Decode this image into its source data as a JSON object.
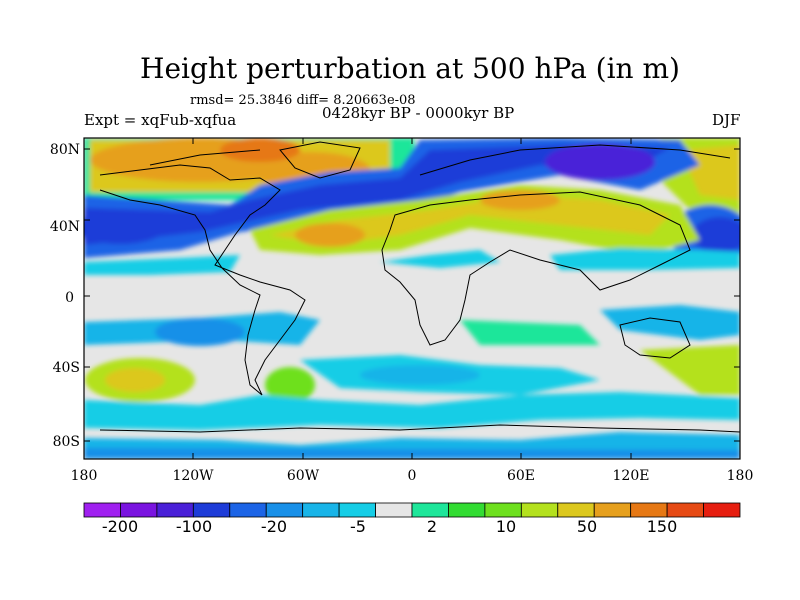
{
  "title": "Height perturbation at 500 hPa (in m)",
  "stats": "rmsd= 25.3846 diff= 8.20663e-08",
  "experiment": "Expt = xqFub-xqfua",
  "period": "0428kyr BP - 0000kyr BP",
  "season": "DJF",
  "lat_ticks": [
    "80N",
    "40N",
    "0",
    "40S",
    "80S"
  ],
  "lon_ticks": [
    "180",
    "120W",
    "60W",
    "0",
    "60E",
    "120E",
    "180"
  ],
  "colorbar": {
    "colors": [
      "#a020f0",
      "#7a14e0",
      "#4a20d8",
      "#1e3cd8",
      "#1c64e6",
      "#1990e8",
      "#18b4e8",
      "#16cde6",
      "#e6e6e6",
      "#1ee69a",
      "#32dc32",
      "#6ee01e",
      "#b4e11e",
      "#dcc81e",
      "#e6a01e",
      "#e67814",
      "#e64a14",
      "#e61e10"
    ],
    "labels": [
      "-200",
      "-100",
      "-20",
      "-5",
      "2",
      "10",
      "50",
      "150"
    ]
  }
}
